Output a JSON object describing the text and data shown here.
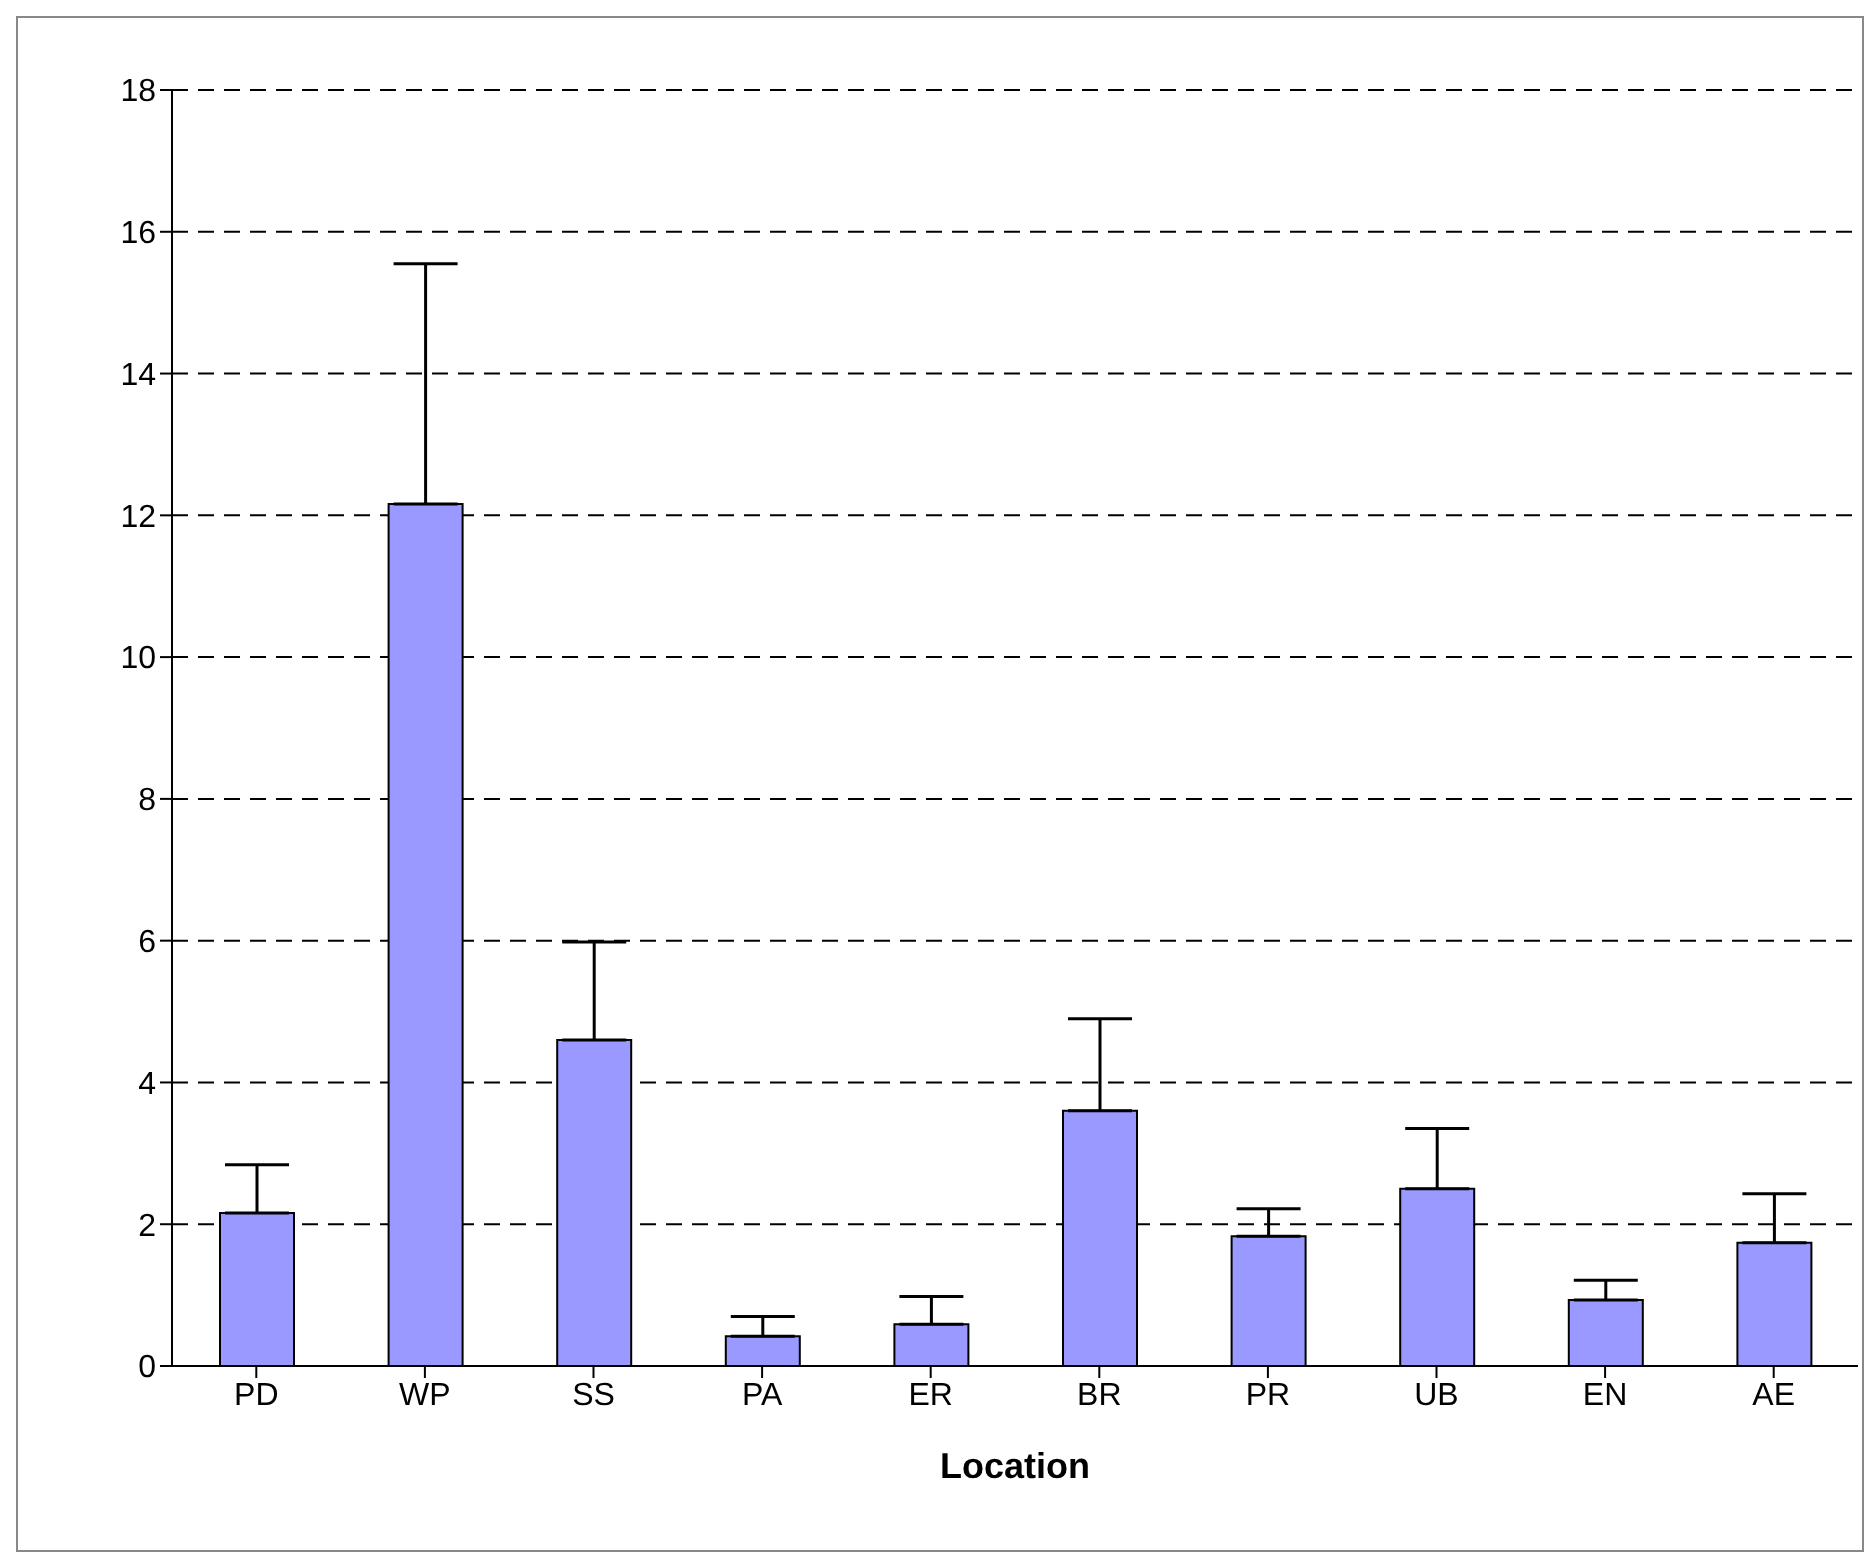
{
  "chart_data": {
    "type": "bar",
    "xlabel": "Location",
    "categories": [
      "PD",
      "WP",
      "SS",
      "PA",
      "ER",
      "BR",
      "PR",
      "UB",
      "EN",
      "AE"
    ],
    "values": [
      2.16,
      12.16,
      4.6,
      0.42,
      0.59,
      3.6,
      1.83,
      2.5,
      0.93,
      1.74
    ],
    "errors": [
      [
        2.16,
        2.84
      ],
      [
        12.16,
        15.55
      ],
      [
        4.6,
        5.98
      ],
      [
        0.42,
        0.7
      ],
      [
        0.59,
        0.98
      ],
      [
        3.6,
        4.9
      ],
      [
        1.83,
        2.22
      ],
      [
        2.5,
        3.35
      ],
      [
        0.93,
        1.21
      ],
      [
        1.74,
        2.43
      ]
    ],
    "color": "#9999ff",
    "ylim": [
      0,
      18
    ],
    "yticks": [
      0,
      2,
      4,
      6,
      8,
      10,
      12,
      14,
      16,
      18
    ],
    "grid": "y"
  }
}
